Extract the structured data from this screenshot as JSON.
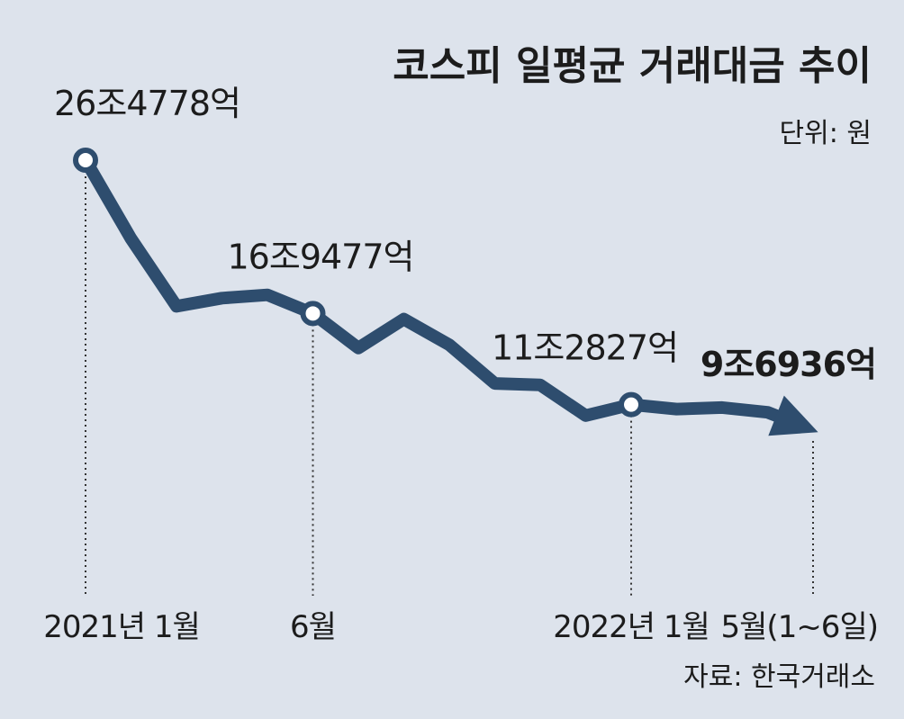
{
  "chart_data": {
    "type": "line",
    "title": "코스피 일평균 거래대금 추이",
    "unit": "단위: 원",
    "source": "자료: 한국거래소",
    "x": [
      "2021-01",
      "2021-02",
      "2021-03",
      "2021-04",
      "2021-05",
      "2021-06",
      "2021-07",
      "2021-08",
      "2021-09",
      "2021-10",
      "2021-11",
      "2021-12",
      "2022-01",
      "2022-02",
      "2022-03",
      "2022-04",
      "2022-05"
    ],
    "values": [
      26.4778,
      21.6,
      17.4,
      17.9,
      18.1,
      16.9477,
      14.8,
      16.6,
      15.0,
      12.6,
      12.5,
      10.6,
      11.2827,
      11.0,
      11.1,
      10.8,
      9.6936
    ],
    "value_unit": "조원",
    "highlighted_points": [
      {
        "x": "2021-01",
        "value": 26.4778,
        "label": "26조4778억",
        "marker": true,
        "bold": false
      },
      {
        "x": "2021-06",
        "value": 16.9477,
        "label": "16조9477억",
        "marker": true,
        "bold": false
      },
      {
        "x": "2022-01",
        "value": 11.2827,
        "label": "11조2827억",
        "marker": true,
        "bold": false
      },
      {
        "x": "2022-05",
        "value": 9.6936,
        "label": "9조6936억",
        "marker": false,
        "bold": true,
        "arrow": true
      }
    ],
    "x_tick_labels": [
      {
        "x": "2021-01",
        "label": "2021년 1월"
      },
      {
        "x": "2021-06",
        "label": "6월"
      },
      {
        "x": "2022-01",
        "label": "2022년 1월"
      },
      {
        "x": "2022-05",
        "label": "5월(1~6일)"
      }
    ],
    "line_color": "#2e4d6e",
    "grid": false,
    "legend": "none"
  }
}
